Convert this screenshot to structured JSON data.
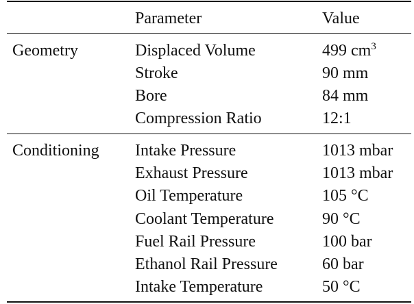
{
  "table": {
    "headers": {
      "group": "",
      "parameter": "Parameter",
      "value": "Value"
    },
    "sections": [
      {
        "group": "Geometry",
        "rows": [
          {
            "parameter": "Displaced Volume",
            "value": "499 cm",
            "value_sup": "3"
          },
          {
            "parameter": "Stroke",
            "value": "90 mm"
          },
          {
            "parameter": "Bore",
            "value": "84 mm"
          },
          {
            "parameter": "Compression Ratio",
            "value": "12:1"
          }
        ]
      },
      {
        "group": "Conditioning",
        "rows": [
          {
            "parameter": "Intake Pressure",
            "value": "1013 mbar"
          },
          {
            "parameter": "Exhaust Pressure",
            "value": "1013 mbar"
          },
          {
            "parameter": "Oil Temperature",
            "value": "105 °C"
          },
          {
            "parameter": "Coolant Temperature",
            "value": "90 °C"
          },
          {
            "parameter": "Fuel Rail Pressure",
            "value": "100 bar"
          },
          {
            "parameter": "Ethanol Rail Pressure",
            "value": "60 bar"
          },
          {
            "parameter": "Intake Temperature",
            "value": "50 °C"
          }
        ]
      }
    ]
  }
}
